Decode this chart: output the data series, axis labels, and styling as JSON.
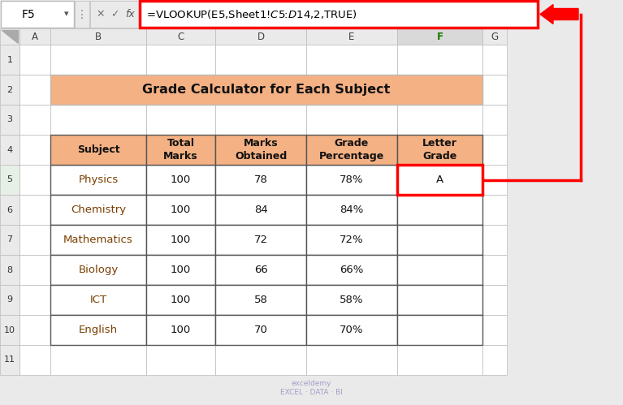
{
  "title": "Grade Calculator for Each Subject",
  "formula_bar_text": "=VLOOKUP(E5,Sheet1!$C$5:$D$14,2,TRUE)",
  "cell_ref": "F5",
  "columns": [
    "Subject",
    "Total\nMarks",
    "Marks\nObtained",
    "Grade\nPercentage",
    "Letter\nGrade"
  ],
  "rows": [
    [
      "Physics",
      "100",
      "78",
      "78%",
      "A"
    ],
    [
      "Chemistry",
      "100",
      "84",
      "84%",
      ""
    ],
    [
      "Mathematics",
      "100",
      "72",
      "72%",
      ""
    ],
    [
      "Biology",
      "100",
      "66",
      "66%",
      ""
    ],
    [
      "ICT",
      "100",
      "58",
      "58%",
      ""
    ],
    [
      "English",
      "100",
      "70",
      "70%",
      ""
    ]
  ],
  "col_letters": [
    "A",
    "B",
    "C",
    "D",
    "E",
    "F",
    "G"
  ],
  "row_labels": [
    "1",
    "2",
    "3",
    "4",
    "5",
    "6",
    "7",
    "8",
    "9",
    "10",
    "11"
  ],
  "header_bg": "#F4B183",
  "title_bg": "#F4B183",
  "table_header_bg": "#F4B183",
  "active_col_bg": "#D9D9D9",
  "bg_color": "#EAEAEA",
  "sheet_bg": "#FFFFFF",
  "red_color": "#FF0000",
  "subject_color": "#7B3F00",
  "watermark_text": "exceldemy\nEXCEL · DATA · BI"
}
